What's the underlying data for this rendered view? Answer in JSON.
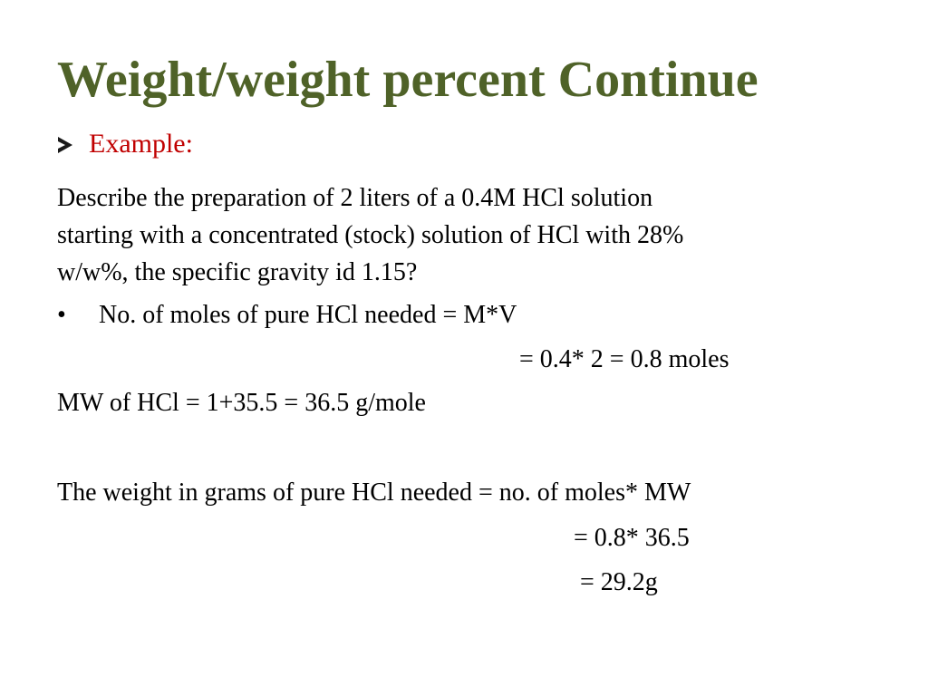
{
  "slide": {
    "title": "Weight/weight percent Continue",
    "example_label": "Example:",
    "problem_lines": [
      "Describe the preparation of 2 liters of a 0.4M HCl solution",
      "starting with a concentrated (stock) solution of HCl with 28%",
      "w/w%, the specific gravity id 1.15?"
    ],
    "bullet_symbol": "•",
    "bullet_text": "No. of moles of pure HCl needed = M*V",
    "moles_result": "= 0.4* 2 = 0.8 moles",
    "mw_line": "MW of HCl = 1+35.5 = 36.5 g/mole",
    "weight_line": "The weight in grams of pure HCl needed = no. of moles* MW",
    "weight_calc": "= 0.8* 36.5",
    "weight_result": "= 29.2g"
  },
  "colors": {
    "title": "#4f6228",
    "example_label": "#c00000",
    "text": "#000000"
  },
  "icons": {
    "example_marker": "arrowhead-bullet-icon"
  }
}
